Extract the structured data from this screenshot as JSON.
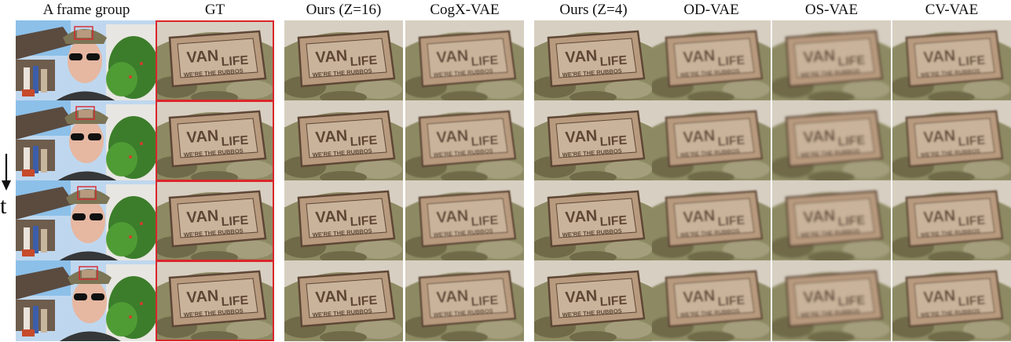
{
  "columns": [
    {
      "key": "frame",
      "label": "A frame group"
    },
    {
      "key": "gt",
      "label": "GT"
    },
    {
      "key": "ours16",
      "label": "Ours (Z=16)"
    },
    {
      "key": "cogx",
      "label": "CogX-VAE"
    },
    {
      "key": "ours4",
      "label": "Ours (Z=4)"
    },
    {
      "key": "odvae",
      "label": "OD-VAE"
    },
    {
      "key": "osvae",
      "label": "OS-VAE"
    },
    {
      "key": "cvvae",
      "label": "CV-VAE"
    }
  ],
  "time_axis_label": "t",
  "patch_text": {
    "line1": "VAN",
    "line1b": "LIFE",
    "line2": "WE'RE THE RUBBOS"
  },
  "colors": {
    "highlight": "#d9262b",
    "badge": "#b89a7e",
    "badge_dark": "#5e4636",
    "camo_a": "#8d8a63",
    "camo_b": "#6f6a4a",
    "camo_c": "#a49e7d"
  }
}
